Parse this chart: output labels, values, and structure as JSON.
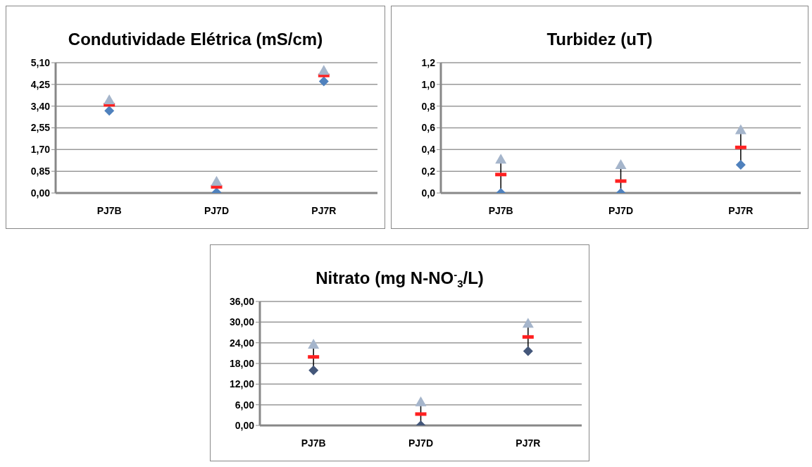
{
  "chart_data": [
    {
      "type": "scatter",
      "title": "Condutividade Elétrica (mS/cm)",
      "categories": [
        "PJ7B",
        "PJ7D",
        "PJ7R"
      ],
      "ylim": [
        0,
        5.1
      ],
      "yticks": [
        {
          "value": 0,
          "label": "0,00"
        },
        {
          "value": 0.85,
          "label": "0,85"
        },
        {
          "value": 1.7,
          "label": "1,70"
        },
        {
          "value": 2.55,
          "label": "2,55"
        },
        {
          "value": 3.4,
          "label": "3,40"
        },
        {
          "value": 4.25,
          "label": "4,25"
        },
        {
          "value": 5.1,
          "label": "5,10"
        }
      ],
      "grid": "y",
      "legend": false,
      "series": [
        {
          "color": "#4f81bd",
          "marker": "diamond",
          "values": [
            3.22,
            0.02,
            4.37
          ]
        },
        {
          "color": "#ff2020",
          "values": [
            3.45,
            0.24,
            4.6
          ]
        },
        {
          "color": "#a5b5cb",
          "marker": "triangle",
          "values": [
            3.64,
            0.45,
            4.79
          ]
        }
      ]
    },
    {
      "type": "scatter",
      "title": "Turbidez (uT)",
      "categories": [
        "PJ7B",
        "PJ7D",
        "PJ7R"
      ],
      "ylim": [
        0,
        1.2
      ],
      "yticks": [
        {
          "value": 0,
          "label": "0,0"
        },
        {
          "value": 0.2,
          "label": "0,2"
        },
        {
          "value": 0.4,
          "label": "0,4"
        },
        {
          "value": 0.6,
          "label": "0,6"
        },
        {
          "value": 0.8,
          "label": "0,8"
        },
        {
          "value": 1.0,
          "label": "1,0"
        },
        {
          "value": 1.2,
          "label": "1,2"
        }
      ],
      "grid": "y",
      "legend": false,
      "series": [
        {
          "color": "#4f81bd",
          "marker": "diamond",
          "values": [
            0,
            0,
            0.26
          ]
        },
        {
          "color": "#ff2020",
          "values": [
            0.17,
            0.11,
            0.42
          ]
        },
        {
          "color": "#a5b5cb",
          "marker": "triangle",
          "values": [
            0.31,
            0.26,
            0.58
          ]
        }
      ]
    },
    {
      "type": "scatter",
      "title": "Nitrato (mg N-NO$^{-}$$_{3}$/L)",
      "categories": [
        "PJ7B",
        "PJ7D",
        "PJ7R"
      ],
      "ylim": [
        0,
        36
      ],
      "yticks": [
        {
          "value": 0,
          "label": "0,00"
        },
        {
          "value": 6,
          "label": "6,00"
        },
        {
          "value": 12,
          "label": "12,00"
        },
        {
          "value": 18,
          "label": "18,00"
        },
        {
          "value": 24,
          "label": "24,00"
        },
        {
          "value": 30,
          "label": "30,00"
        },
        {
          "value": 36,
          "label": "36,00"
        }
      ],
      "grid": "y",
      "legend": false,
      "series": [
        {
          "color": "#44577a",
          "marker": "diamond",
          "values": [
            16.0,
            0,
            21.6
          ]
        },
        {
          "color": "#ff2020",
          "values": [
            19.9,
            3.3,
            25.7
          ]
        },
        {
          "color": "#a5b5cb",
          "marker": "triangle",
          "values": [
            23.5,
            6.8,
            29.6
          ]
        }
      ]
    }
  ]
}
